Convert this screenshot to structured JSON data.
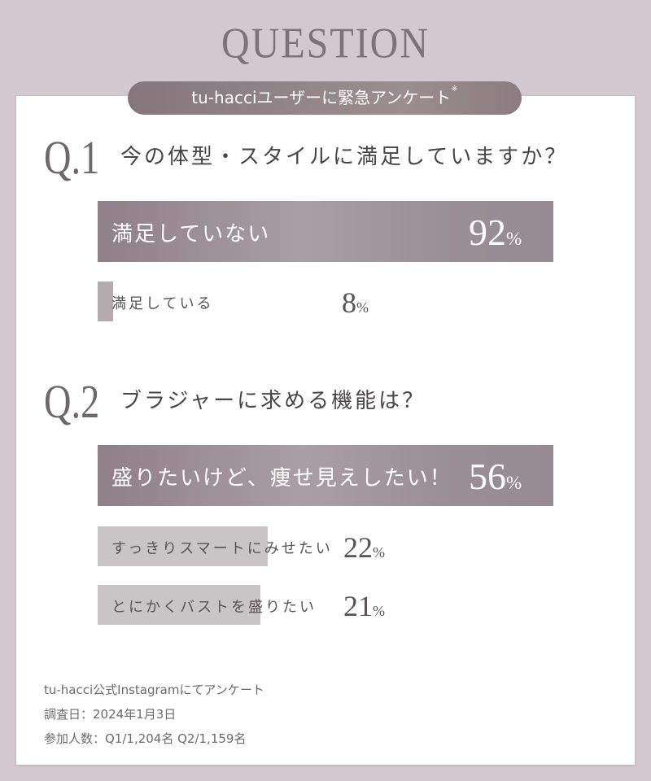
{
  "header": {
    "title": "QUESTION",
    "badge": "tu-hacciユーザーに緊急アンケート",
    "badge_mark": "※"
  },
  "chart_data": [
    {
      "type": "bar",
      "orientation": "horizontal",
      "number": "Q.1",
      "title": "今の体型・スタイルに満足していますか？",
      "categories": [
        "満足していない",
        "満足している"
      ],
      "values": [
        92,
        8
      ],
      "unit": "%"
    },
    {
      "type": "bar",
      "orientation": "horizontal",
      "number": "Q.2",
      "title": "ブラジャーに求める機能は？",
      "categories": [
        "盛りたいけど、痩せ見えしたい！",
        "すっきりスマートにみせたい",
        "とにかくバストを盛りたい"
      ],
      "values": [
        56,
        22,
        21
      ],
      "unit": "%"
    }
  ],
  "footer": {
    "line1": "tu-hacci公式Instagramにてアンケート",
    "line2": "調査日：2024年1月3日",
    "line3": "参加人数：Q1/1,204名 Q2/1,159名"
  },
  "colors": {
    "background": "#d2c8d0",
    "bar_main": "#9a8f95",
    "bar_sub": "#c9c4c5"
  }
}
